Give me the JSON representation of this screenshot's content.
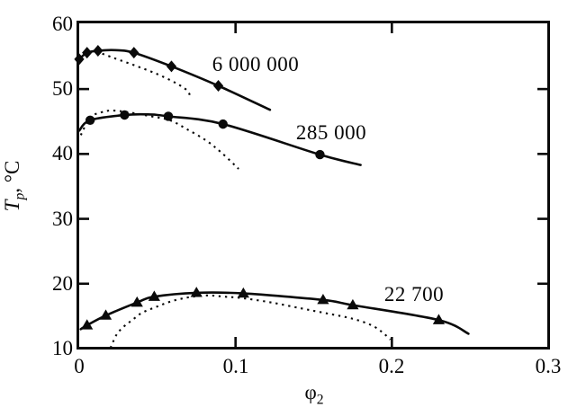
{
  "chart_data": {
    "type": "line",
    "title": "",
    "xlabel": {
      "symbol": "φ",
      "subscript": "2"
    },
    "ylabel": {
      "symbol": "T",
      "subscript": "p",
      "rest": ", °C"
    },
    "xlim": [
      0,
      0.3
    ],
    "ylim": [
      10,
      60
    ],
    "x_ticks": [
      0,
      0.1,
      0.2,
      0.3
    ],
    "x_tick_labels": [
      "0",
      "0.1",
      "0.2",
      "0.3"
    ],
    "y_ticks": [
      10,
      20,
      30,
      40,
      50,
      60
    ],
    "y_tick_labels": [
      "10",
      "20",
      "30",
      "40",
      "50",
      "60"
    ],
    "grid": false,
    "legend": "inline-labels",
    "ink_color": "#0a0a0a",
    "background": "#ffffff",
    "series": [
      {
        "name": "6 000 000",
        "marker": "diamond",
        "line_style": "solid",
        "curve": [
          [
            0.0,
            54.6
          ],
          [
            0.005,
            55.6
          ],
          [
            0.012,
            55.9
          ],
          [
            0.023,
            56.0
          ],
          [
            0.035,
            55.6
          ],
          [
            0.059,
            53.5
          ],
          [
            0.089,
            50.5
          ],
          [
            0.122,
            46.8
          ]
        ],
        "markers": [
          [
            0.0,
            54.6
          ],
          [
            0.005,
            55.6
          ],
          [
            0.012,
            55.9
          ],
          [
            0.035,
            55.6
          ],
          [
            0.059,
            53.5
          ],
          [
            0.089,
            50.5
          ]
        ]
      },
      {
        "name": "285 000",
        "marker": "circle",
        "line_style": "solid",
        "curve": [
          [
            0.0,
            43.6
          ],
          [
            0.007,
            45.2
          ],
          [
            0.029,
            46.0
          ],
          [
            0.044,
            46.1
          ],
          [
            0.057,
            45.8
          ],
          [
            0.092,
            44.6
          ],
          [
            0.154,
            39.9
          ],
          [
            0.18,
            38.3
          ]
        ],
        "markers": [
          [
            0.007,
            45.2
          ],
          [
            0.029,
            46.0
          ],
          [
            0.057,
            45.8
          ],
          [
            0.092,
            44.6
          ],
          [
            0.154,
            39.9
          ]
        ]
      },
      {
        "name": "22 700",
        "marker": "triangle",
        "line_style": "solid",
        "curve": [
          [
            0.001,
            13.0
          ],
          [
            0.005,
            13.6
          ],
          [
            0.017,
            15.1
          ],
          [
            0.037,
            17.1
          ],
          [
            0.048,
            18.0
          ],
          [
            0.075,
            18.6
          ],
          [
            0.105,
            18.5
          ],
          [
            0.156,
            17.5
          ],
          [
            0.175,
            16.7
          ],
          [
            0.23,
            14.4
          ],
          [
            0.249,
            12.3
          ]
        ],
        "markers": [
          [
            0.005,
            13.6
          ],
          [
            0.017,
            15.1
          ],
          [
            0.037,
            17.1
          ],
          [
            0.048,
            18.0
          ],
          [
            0.075,
            18.6
          ],
          [
            0.105,
            18.5
          ],
          [
            0.156,
            17.5
          ],
          [
            0.175,
            16.7
          ],
          [
            0.23,
            14.4
          ]
        ]
      }
    ],
    "dotted_curves": [
      {
        "points": [
          [
            0.011,
            55.8
          ],
          [
            0.022,
            54.8
          ],
          [
            0.036,
            53.6
          ],
          [
            0.05,
            52.3
          ],
          [
            0.062,
            50.9
          ],
          [
            0.069,
            49.8
          ],
          [
            0.071,
            48.9
          ]
        ]
      },
      {
        "points": [
          [
            0.001,
            42.9
          ],
          [
            0.007,
            45.6
          ],
          [
            0.014,
            46.4
          ],
          [
            0.021,
            46.7
          ],
          [
            0.032,
            46.4
          ],
          [
            0.046,
            45.8
          ],
          [
            0.058,
            45.2
          ],
          [
            0.069,
            43.8
          ],
          [
            0.081,
            42.1
          ],
          [
            0.091,
            40.2
          ],
          [
            0.102,
            37.7
          ]
        ]
      },
      {
        "points": [
          [
            0.02,
            10.1
          ],
          [
            0.024,
            12.2
          ],
          [
            0.029,
            13.5
          ],
          [
            0.034,
            14.4
          ],
          [
            0.04,
            15.5
          ],
          [
            0.049,
            16.4
          ],
          [
            0.059,
            17.3
          ],
          [
            0.07,
            17.9
          ],
          [
            0.082,
            18.2
          ],
          [
            0.093,
            18.0
          ],
          [
            0.104,
            17.8
          ],
          [
            0.123,
            17.1
          ],
          [
            0.142,
            16.2
          ],
          [
            0.159,
            15.4
          ],
          [
            0.175,
            14.6
          ],
          [
            0.187,
            13.6
          ],
          [
            0.194,
            12.5
          ],
          [
            0.199,
            11.4
          ]
        ]
      }
    ],
    "series_labels": [
      {
        "text": "6 000 000",
        "x": 0.113,
        "T": 53.8
      },
      {
        "text": "285 000",
        "x": 0.161,
        "T": 43.3
      },
      {
        "text": "22 700",
        "x": 0.214,
        "T": 18.3
      }
    ]
  }
}
